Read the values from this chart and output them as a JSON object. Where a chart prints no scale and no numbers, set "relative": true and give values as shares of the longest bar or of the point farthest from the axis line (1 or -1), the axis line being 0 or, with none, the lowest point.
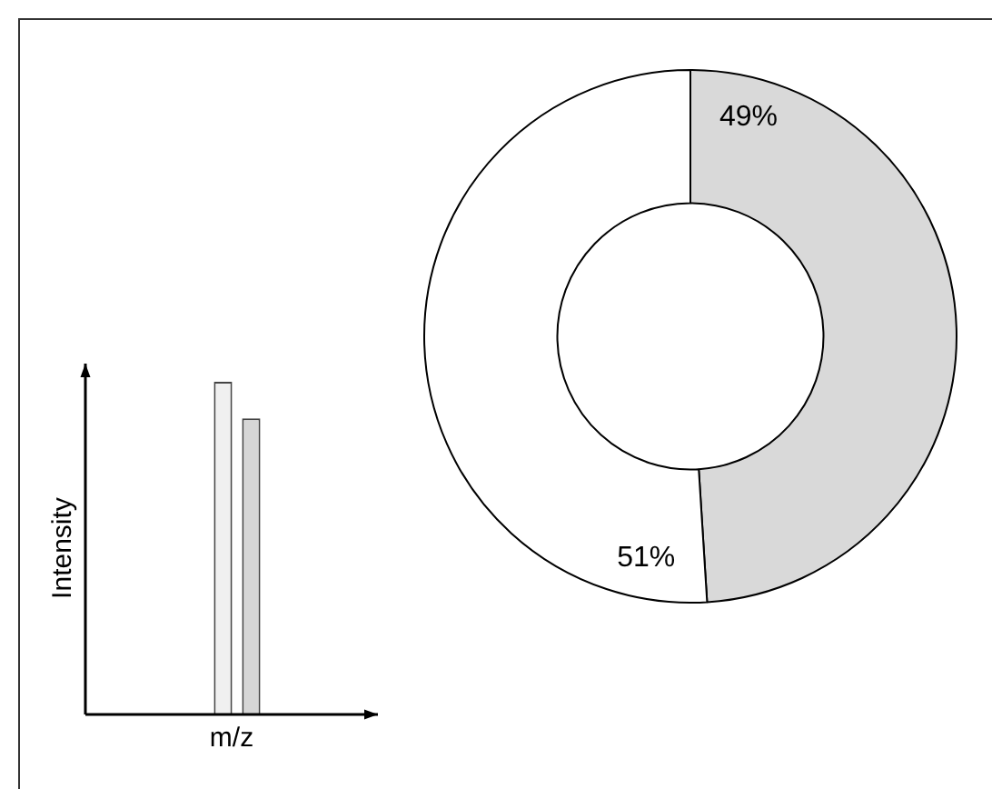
{
  "chart_data": [
    {
      "type": "bar",
      "relative": true,
      "xlabel": "m/z",
      "ylabel": "Intensity",
      "categories": [
        null,
        null
      ],
      "colors": [
        "#f0f0f0",
        "#d6d6d6"
      ],
      "values": [
        1,
        0.89
      ]
    },
    {
      "type": "donut",
      "categories": [
        null,
        null
      ],
      "values": [
        49,
        51
      ],
      "colors": [
        "#d9d9d9",
        "#ffffff"
      ],
      "value_labels": [
        "49%",
        "51%"
      ]
    }
  ]
}
